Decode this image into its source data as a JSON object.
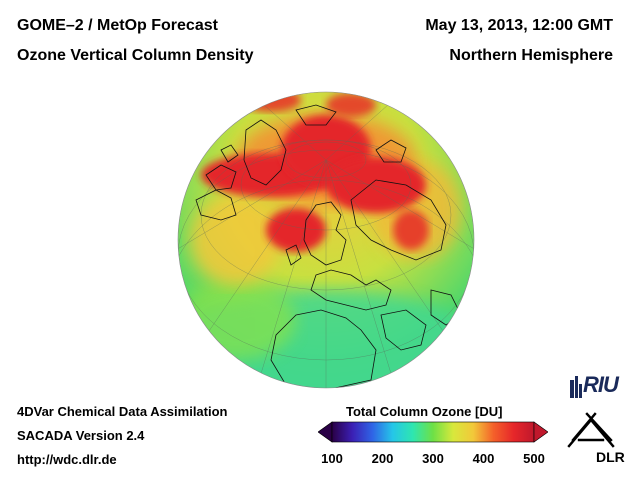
{
  "header": {
    "title": "GOME–2 / MetOp Forecast",
    "subtitle": "Ozone Vertical Column Density",
    "date": "May 13, 2013, 12:00 GMT",
    "region": "Northern Hemisphere"
  },
  "footer": {
    "line1": "4DVar Chemical Data Assimilation",
    "line2": "SACADA Version 2.4",
    "line3": "http://wdc.dlr.de"
  },
  "colorbar": {
    "title": "Total Column Ozone [DU]",
    "min": 100,
    "max": 500,
    "ticks": [
      "100",
      "200",
      "300",
      "400",
      "500"
    ],
    "colors": [
      "#2a0046",
      "#3b1fb4",
      "#2f64e6",
      "#25c6e8",
      "#2ee6b0",
      "#6ee046",
      "#d8e83c",
      "#f2c83a",
      "#f4602a",
      "#e6262a",
      "#c0182c"
    ]
  },
  "logos": {
    "riu": "RIU",
    "dlr": "DLR"
  }
}
